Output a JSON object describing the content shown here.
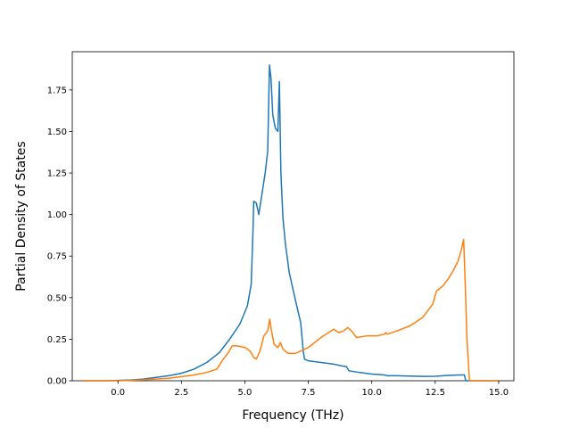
{
  "chart_data": {
    "type": "line",
    "title": "",
    "xlabel": "Frequency (THz)",
    "ylabel": "Partial Density of States",
    "xlim": [
      -1.8,
      15.6
    ],
    "ylim": [
      0.0,
      1.98
    ],
    "xticks": [
      0.0,
      2.5,
      5.0,
      7.5,
      10.0,
      12.5,
      15.0
    ],
    "xtick_labels": [
      "0.0",
      "2.5",
      "5.0",
      "7.5",
      "10.0",
      "12.5",
      "15.0"
    ],
    "yticks": [
      0.0,
      0.25,
      0.5,
      0.75,
      1.0,
      1.25,
      1.5,
      1.75
    ],
    "ytick_labels": [
      "0.00",
      "0.25",
      "0.50",
      "0.75",
      "1.00",
      "1.25",
      "1.50",
      "1.75"
    ],
    "grid": false,
    "legend": "none",
    "series": [
      {
        "color": "#1f77b4",
        "x": [
          -1.4,
          -0.5,
          0.0,
          0.5,
          1.0,
          1.5,
          2.0,
          2.5,
          3.0,
          3.5,
          4.0,
          4.4,
          4.8,
          5.1,
          5.25,
          5.32,
          5.35,
          5.45,
          5.55,
          5.65,
          5.8,
          5.9,
          5.97,
          6.03,
          6.1,
          6.2,
          6.3,
          6.36,
          6.42,
          6.5,
          6.6,
          6.75,
          7.0,
          7.2,
          7.3,
          7.35,
          7.5,
          8.0,
          8.5,
          8.8,
          9.0,
          9.1,
          9.5,
          10.0,
          10.5,
          10.6,
          11.0,
          11.5,
          12.0,
          12.5,
          13.0,
          13.5,
          13.65,
          13.7,
          14.0,
          15.0
        ],
        "y": [
          0.0,
          0.0,
          0.002,
          0.005,
          0.01,
          0.02,
          0.03,
          0.045,
          0.07,
          0.11,
          0.17,
          0.25,
          0.34,
          0.45,
          0.58,
          0.9,
          1.08,
          1.07,
          1.0,
          1.1,
          1.25,
          1.38,
          1.9,
          1.82,
          1.6,
          1.52,
          1.5,
          1.8,
          1.25,
          0.98,
          0.82,
          0.65,
          0.48,
          0.35,
          0.18,
          0.13,
          0.12,
          0.11,
          0.1,
          0.09,
          0.085,
          0.06,
          0.05,
          0.04,
          0.035,
          0.03,
          0.03,
          0.028,
          0.026,
          0.027,
          0.032,
          0.035,
          0.035,
          0.0,
          0.0,
          0.0
        ]
      },
      {
        "color": "#ff7f0e",
        "x": [
          -1.4,
          -0.5,
          0.0,
          0.5,
          1.0,
          1.5,
          2.0,
          2.5,
          3.0,
          3.5,
          3.9,
          4.15,
          4.35,
          4.5,
          4.7,
          5.0,
          5.2,
          5.35,
          5.45,
          5.6,
          5.75,
          5.9,
          5.98,
          6.05,
          6.15,
          6.3,
          6.4,
          6.5,
          6.7,
          7.0,
          7.5,
          8.0,
          8.5,
          8.7,
          8.9,
          9.05,
          9.2,
          9.4,
          9.8,
          10.2,
          10.5,
          10.55,
          10.6,
          11.0,
          11.5,
          12.0,
          12.4,
          12.55,
          12.8,
          13.0,
          13.2,
          13.4,
          13.55,
          13.62,
          13.68,
          13.75,
          13.85,
          14.0,
          15.0
        ],
        "y": [
          0.0,
          0.0,
          0.0,
          0.003,
          0.006,
          0.01,
          0.015,
          0.025,
          0.035,
          0.05,
          0.07,
          0.13,
          0.17,
          0.21,
          0.21,
          0.2,
          0.18,
          0.14,
          0.13,
          0.18,
          0.27,
          0.3,
          0.37,
          0.3,
          0.22,
          0.2,
          0.23,
          0.19,
          0.165,
          0.165,
          0.2,
          0.26,
          0.31,
          0.29,
          0.3,
          0.32,
          0.3,
          0.26,
          0.27,
          0.27,
          0.28,
          0.29,
          0.28,
          0.3,
          0.33,
          0.38,
          0.46,
          0.54,
          0.57,
          0.61,
          0.66,
          0.72,
          0.8,
          0.85,
          0.6,
          0.25,
          0.0,
          0.0,
          0.0
        ]
      }
    ]
  }
}
